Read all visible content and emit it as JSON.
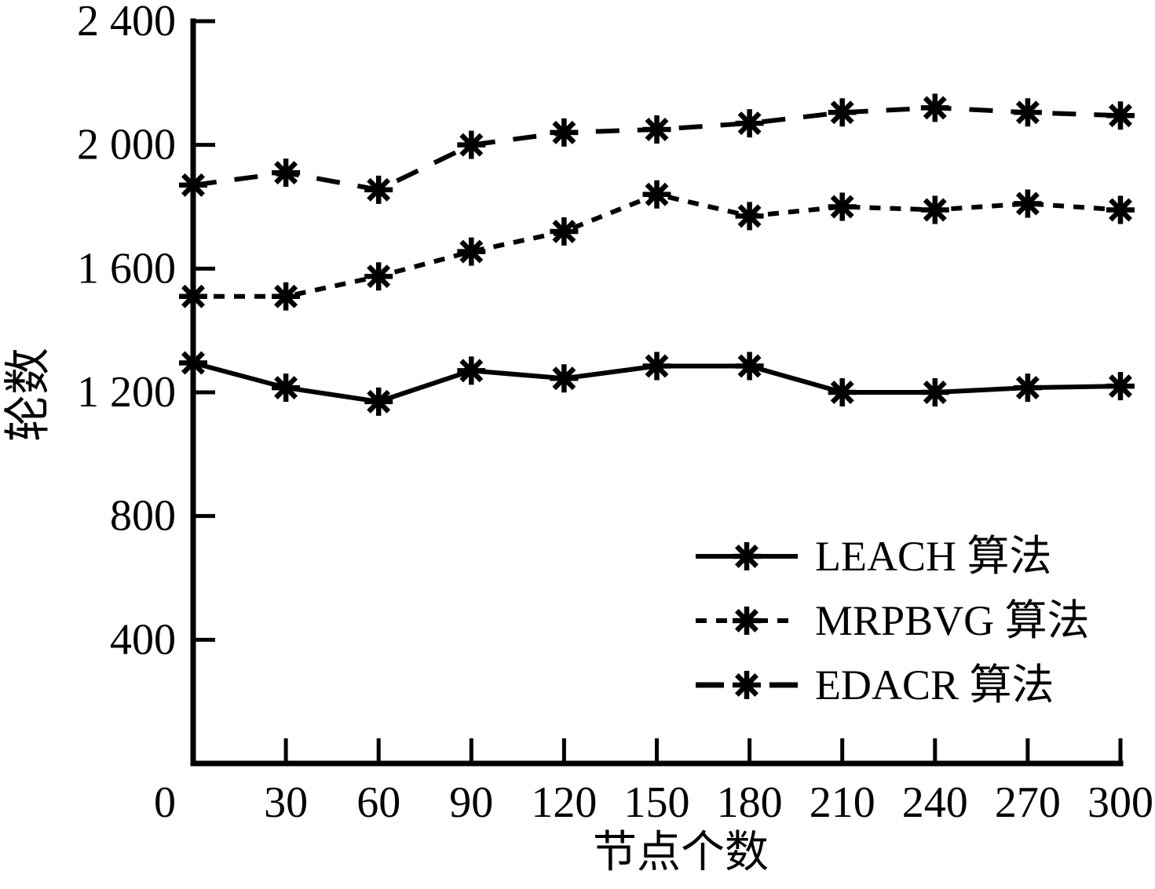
{
  "figure": {
    "background_color": "#ffffff",
    "line_color": "#000000"
  },
  "chart_data": {
    "type": "line",
    "title": "",
    "xlabel": "节点个数",
    "ylabel": "轮数",
    "xlim": [
      0,
      300
    ],
    "ylim": [
      0,
      2400
    ],
    "grid": false,
    "legend_position": "inside-lower-right",
    "xticks": {
      "values": [
        0,
        30,
        60,
        90,
        120,
        150,
        180,
        210,
        240,
        270,
        300
      ],
      "labels": [
        "0",
        "30",
        "60",
        "90",
        "120",
        "150",
        "180",
        "210",
        "240",
        "270",
        "300"
      ]
    },
    "yticks": {
      "values": [
        400,
        800,
        1200,
        1600,
        2000,
        2400
      ],
      "labels": [
        "400",
        "800",
        "1 200",
        "1 600",
        "2 000",
        "2 400"
      ]
    },
    "x": [
      0,
      30,
      60,
      90,
      120,
      150,
      180,
      210,
      240,
      270,
      300
    ],
    "series": [
      {
        "name": "LEACH 算法",
        "line_style": "solid",
        "marker": "asterisk",
        "values": [
          1295,
          1215,
          1170,
          1270,
          1245,
          1285,
          1285,
          1200,
          1200,
          1215,
          1220
        ]
      },
      {
        "name": "MRPBVG 算法",
        "line_style": "dotted",
        "marker": "asterisk",
        "values": [
          1510,
          1510,
          1575,
          1655,
          1720,
          1840,
          1770,
          1800,
          1790,
          1810,
          1790
        ]
      },
      {
        "name": "EDACR 算法",
        "line_style": "dashed",
        "marker": "asterisk",
        "values": [
          1870,
          1910,
          1855,
          2000,
          2040,
          2050,
          2070,
          2105,
          2120,
          2105,
          2095
        ]
      }
    ]
  }
}
